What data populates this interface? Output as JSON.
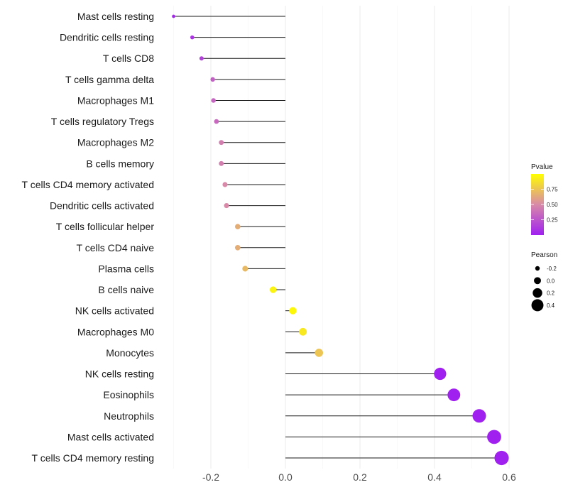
{
  "chart_data": {
    "type": "lollipop",
    "title": "",
    "xlabel": "",
    "ylabel": "",
    "xlim": [
      -0.3,
      0.6
    ],
    "x_ticks": [
      -0.2,
      0.0,
      0.2,
      0.4,
      0.6
    ],
    "x_tick_labels": [
      "-0.2",
      "0.0",
      "0.2",
      "0.4",
      "0.6"
    ],
    "grid": true,
    "categories": [
      "Mast cells resting",
      "Dendritic cells resting",
      "T cells CD8",
      "T cells gamma delta",
      "Macrophages M1",
      "T cells regulatory  Tregs",
      "Macrophages M2",
      "B cells memory",
      "T cells CD4 memory activated",
      "Dendritic cells activated",
      "T cells follicular helper",
      "T cells CD4 naive",
      "Plasma cells",
      "B cells naive",
      "NK cells activated",
      "Macrophages M0",
      "Monocytes",
      "NK cells resting",
      "Eosinophils",
      "Neutrophils",
      "Mast cells activated",
      "T cells CD4 memory resting"
    ],
    "pearson": [
      -0.3,
      -0.25,
      -0.225,
      -0.195,
      -0.193,
      -0.185,
      -0.172,
      -0.172,
      -0.162,
      -0.158,
      -0.128,
      -0.128,
      -0.108,
      -0.033,
      0.02,
      0.047,
      0.09,
      0.415,
      0.452,
      0.52,
      0.56,
      0.58
    ],
    "pvalue": [
      0.02,
      0.1,
      0.15,
      0.3,
      0.33,
      0.35,
      0.45,
      0.45,
      0.5,
      0.5,
      0.65,
      0.65,
      0.7,
      0.95,
      0.97,
      0.9,
      0.75,
      0.001,
      0.001,
      0.0005,
      0.0003,
      0.0002
    ],
    "legend_color": {
      "title": "Pvalue",
      "ticks": [
        0.75,
        0.5,
        0.25
      ],
      "tick_labels": [
        "0.75",
        "0.50",
        "0.25"
      ],
      "range": [
        0.0,
        1.0
      ],
      "low_color": "#a020f0",
      "high_color": "#ffff00",
      "position": "right"
    },
    "legend_size": {
      "title": "Pearson",
      "values": [
        -0.2,
        0.0,
        0.2,
        0.4
      ],
      "labels": [
        "-0.2",
        "0.0",
        "0.2",
        "0.4"
      ],
      "position": "right"
    }
  }
}
